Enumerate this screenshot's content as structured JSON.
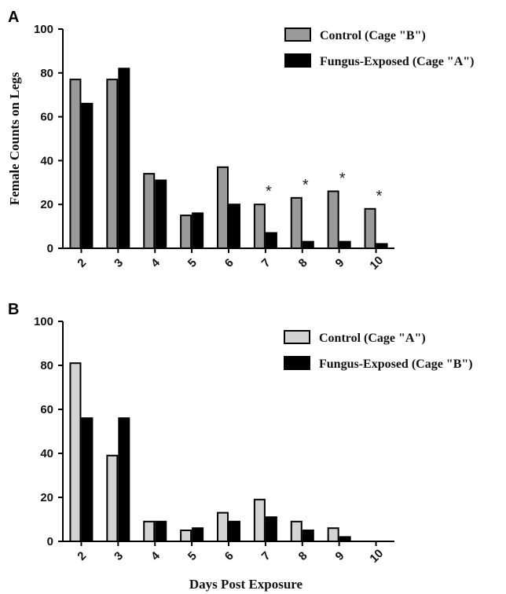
{
  "chart_data": [
    {
      "panel_label": "A",
      "type": "bar",
      "ylabel": "Female Counts on Legs",
      "xlabel": "",
      "ylim": [
        0,
        100
      ],
      "yticks": [
        0,
        20,
        40,
        60,
        80,
        100
      ],
      "categories": [
        "2",
        "3",
        "4",
        "5",
        "6",
        "7",
        "8",
        "9",
        "10"
      ],
      "series": [
        {
          "name": "Control (Cage \"B\")",
          "color": "#9a9a9a",
          "values": [
            77,
            77,
            34,
            15,
            37,
            20,
            23,
            26,
            18
          ]
        },
        {
          "name": "Fungus-Exposed  (Cage \"A\")",
          "color": "#000000",
          "values": [
            66,
            82,
            31,
            16,
            20,
            7,
            3,
            3,
            2
          ]
        }
      ],
      "annotations": [
        "",
        "",
        "",
        "",
        "",
        "*",
        "*",
        "*",
        "*"
      ],
      "legend_position": "top-right"
    },
    {
      "panel_label": "B",
      "type": "bar",
      "ylabel": "",
      "xlabel": "Days Post Exposure",
      "ylim": [
        0,
        100
      ],
      "yticks": [
        0,
        20,
        40,
        60,
        80,
        100
      ],
      "categories": [
        "2",
        "3",
        "4",
        "5",
        "6",
        "7",
        "8",
        "9",
        "10"
      ],
      "series": [
        {
          "name": "Control (Cage \"A\")",
          "color": "#d3d3d3",
          "values": [
            81,
            39,
            9,
            5,
            13,
            19,
            9,
            6,
            0
          ]
        },
        {
          "name": "Fungus-Exposed  (Cage \"B\")",
          "color": "#000000",
          "values": [
            56,
            56,
            9,
            6,
            9,
            11,
            5,
            2,
            0
          ]
        }
      ],
      "annotations": [
        "",
        "",
        "",
        "",
        "",
        "",
        "",
        "",
        ""
      ],
      "legend_position": "top-right"
    }
  ]
}
